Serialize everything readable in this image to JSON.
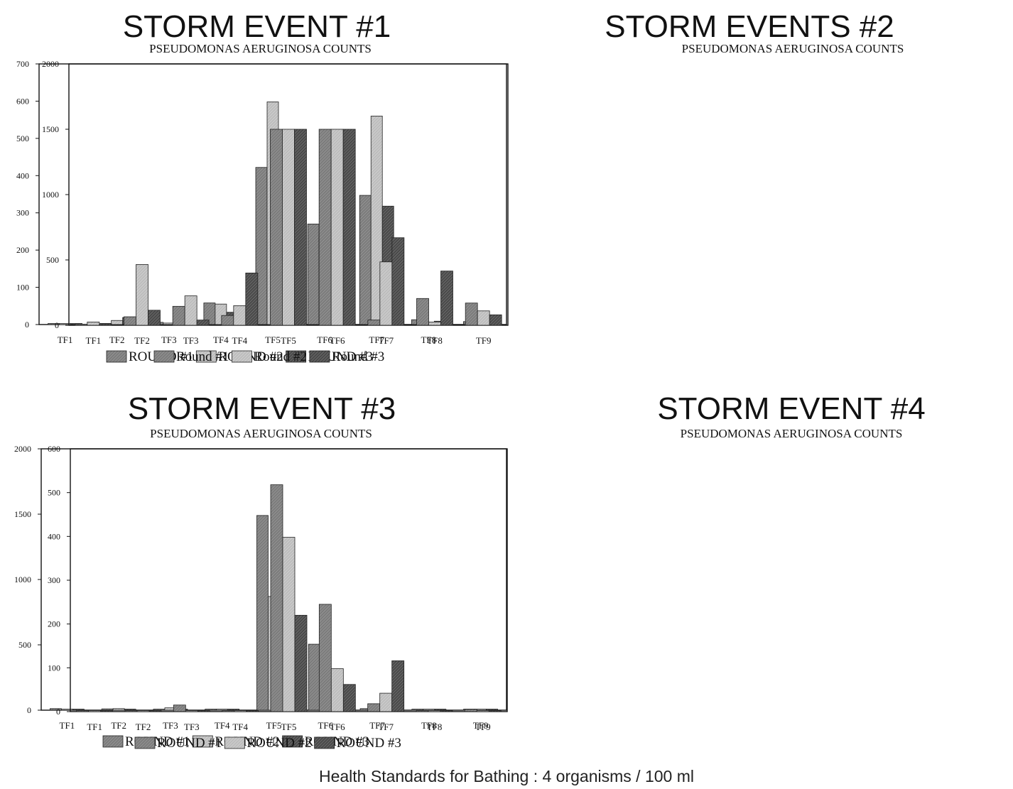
{
  "footer": "Health Standards for Bathing : 4 organisms / 100 ml",
  "chart_data": [
    {
      "type": "bar",
      "title": "STORM EVENT #1",
      "subtitle": "PSEUDOMONAS AERUGINOSA COUNTS",
      "categories": [
        "TF1",
        "TF2",
        "TF3",
        "TF4",
        "TF5",
        "TF6",
        "TF7",
        "TF8",
        ""
      ],
      "yticks": [
        0,
        100,
        200,
        300,
        400,
        500,
        600,
        700
      ],
      "ylim": [
        0,
        700
      ],
      "grid": false,
      "legend_position": "bottom",
      "series": [
        {
          "name": "ROUND #1",
          "values": [
            2,
            3,
            6,
            58,
            422,
            270,
            347,
            13,
            8
          ]
        },
        {
          "name": "ROUND #2",
          "values": [
            2,
            11,
            4,
            55,
            598,
            238,
            560,
            5,
            5
          ]
        },
        {
          "name": "ROUND #3",
          "values": [
            2,
            19,
            2,
            33,
            358,
            143,
            318,
            9,
            13
          ]
        }
      ]
    },
    {
      "type": "bar",
      "title": "STORM EVENTS #2",
      "subtitle": "PSEUDOMONAS AERUGINOSA COUNTS",
      "categories": [
        "TF1",
        "TF2",
        "TF3",
        "TF4",
        "TF5",
        "TF6",
        "TF7",
        "TF8",
        "TF9"
      ],
      "yticks": [
        0,
        500,
        1000,
        1500,
        2000
      ],
      "ylim": [
        0,
        2000
      ],
      "grid": false,
      "legend_position": "bottom",
      "series": [
        {
          "name": "Round #1",
          "values": [
            5,
            65,
            145,
            75,
            1500,
            1500,
            40,
            205,
            170
          ]
        },
        {
          "name": "Round #2",
          "values": [
            25,
            465,
            225,
            150,
            1500,
            1500,
            485,
            25,
            110
          ]
        },
        {
          "name": "Round #3",
          "values": [
            10,
            115,
            40,
            400,
            1500,
            1500,
            670,
            415,
            80
          ]
        }
      ]
    },
    {
      "type": "bar",
      "title": "STORM EVENT #3",
      "subtitle": "PSEUDOMONAS AERUGINOSA COUNTS",
      "categories": [
        "TF1",
        "TF2",
        "TF3",
        "TF4",
        "TF5",
        "TF6",
        "TF7",
        "TF8",
        "TF9"
      ],
      "yticks": [
        0,
        500,
        1000,
        1500,
        2000
      ],
      "ylim": [
        0,
        2000
      ],
      "grid": false,
      "legend_position": "bottom",
      "series": [
        {
          "name": "ROUND #1",
          "values": [
            12,
            10,
            8,
            8,
            1490,
            505,
            12,
            5,
            3
          ]
        },
        {
          "name": "ROUND #2",
          "values": [
            5,
            12,
            18,
            5,
            870,
            215,
            8,
            3,
            3
          ]
        },
        {
          "name": "ROUND #3",
          "values": [
            5,
            8,
            8,
            3,
            590,
            5,
            35,
            3,
            3
          ]
        }
      ]
    },
    {
      "type": "bar",
      "title": "STORM EVENT #4",
      "subtitle": "PSEUDOMONAS AERUGINOSA COUNTS",
      "categories": [
        "TF1",
        "TF2",
        "TF3",
        "TF4",
        "TF5",
        "TF6",
        "TF7",
        "TF8",
        "TF9"
      ],
      "yticks": [
        0,
        100,
        200,
        300,
        400,
        500,
        600
      ],
      "ylim": [
        0,
        600
      ],
      "grid": false,
      "legend_position": "bottom",
      "series": [
        {
          "name": "ROUND #1",
          "values": [
            2,
            2,
            15,
            2,
            518,
            245,
            18,
            2,
            5
          ]
        },
        {
          "name": "ROUND #2",
          "values": [
            2,
            2,
            2,
            2,
            398,
            98,
            42,
            2,
            2
          ]
        },
        {
          "name": "ROUND #3",
          "values": [
            2,
            2,
            2,
            2,
            220,
            62,
            116,
            2,
            2
          ]
        }
      ]
    }
  ],
  "series_fills": [
    "#7c7c7c",
    "#bdbdbd",
    "#4a4a4a"
  ]
}
